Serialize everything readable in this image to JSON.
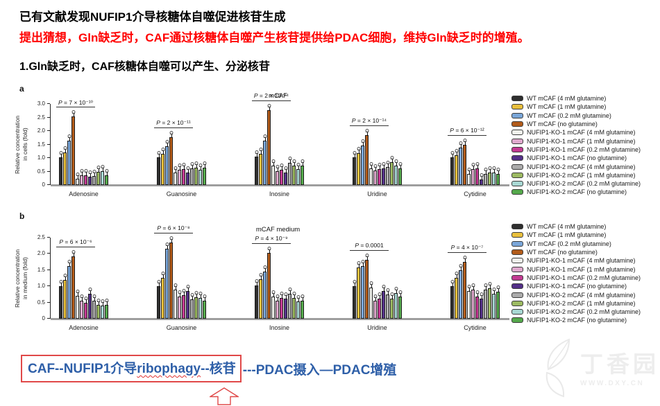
{
  "slide": {
    "heading1": "已有文献发现NUFIP1介导核糖体自噬促进核苷生成",
    "heading2": "提出猜想，Gln缺乏时，CAF通过核糖体自噬产生核苷提供给PDAC细胞，维持Gln缺乏时的增殖。",
    "heading3": "1.Gln缺乏时，CAF核糖体自噬可以产生、分泌核苷",
    "conclusion": {
      "boxed_pre": "CAF--NUFIP1介导",
      "boxed_term": "ribophagy",
      "boxed_post": "--核苷",
      "rest": "---PDAC摄入—PDAC增殖"
    },
    "colors": {
      "heading_red": "#ff0000",
      "conclusion_blue": "#2e5fa8",
      "box_red": "#e04848",
      "baseline_gray": "#9e9e9e"
    }
  },
  "watermark": {
    "site_name": "丁香园",
    "site_url": "WWW.DXY.CN"
  },
  "chart_data": [
    {
      "type": "bar",
      "panel_label": "a",
      "title": "mCAF",
      "ylabel": "Relative concentration\nin cells (fold)",
      "ylim": [
        0,
        3.0
      ],
      "ytick_step": 0.5,
      "grid": false,
      "legend_position": "right",
      "categories": [
        "Adenosine",
        "Guanosine",
        "Inosine",
        "Uridine",
        "Cytidine"
      ],
      "p_values": [
        "P = 7 × 10⁻¹⁰",
        "P = 2 × 10⁻¹¹",
        "P = 2 × 10⁻¹⁴",
        "P = 2 × 10⁻¹⁴",
        "P = 6 × 10⁻¹²"
      ],
      "series": [
        {
          "name": "WT mCAF (4 mM glutamine)",
          "color": "#2e2e2e",
          "values": [
            1.03,
            1.03,
            1.05,
            1.03,
            1.03
          ]
        },
        {
          "name": "WT mCAF (1 mM glutamine)",
          "color": "#e8bf3d",
          "values": [
            1.2,
            1.15,
            1.15,
            1.17,
            1.1
          ]
        },
        {
          "name": "WT mCAF (0.2 mM glutamine)",
          "color": "#7aa6d8",
          "values": [
            1.63,
            1.43,
            1.65,
            1.45,
            1.38
          ]
        },
        {
          "name": "WT mCAF (no glutamine)",
          "color": "#b25c1b",
          "values": [
            2.53,
            1.77,
            2.78,
            1.85,
            1.5
          ]
        },
        {
          "name": "NUFIP1-KO-1 mCAF (4 mM glutamine)",
          "color": "#f0f2ec",
          "values": [
            0.22,
            0.45,
            0.72,
            0.62,
            0.4
          ]
        },
        {
          "name": "NUFIP1-KO-1 mCAF (1 mM glutamine)",
          "color": "#dfa9cd",
          "values": [
            0.35,
            0.57,
            0.52,
            0.55,
            0.6
          ]
        },
        {
          "name": "NUFIP1-KO-1 mCAF (0.2 mM glutamine)",
          "color": "#c23a92",
          "values": [
            0.35,
            0.58,
            0.57,
            0.58,
            0.62
          ]
        },
        {
          "name": "NUFIP1-KO-1 mCAF (no glutamine)",
          "color": "#533088",
          "values": [
            0.3,
            0.45,
            0.47,
            0.62,
            0.2
          ]
        },
        {
          "name": "NUFIP1-KO-2 mCAF (4 mM glutamine)",
          "color": "#ababab",
          "values": [
            0.33,
            0.62,
            0.82,
            0.67,
            0.4
          ]
        },
        {
          "name": "NUFIP1-KO-2 mCAF (1 mM glutamine)",
          "color": "#9cba62",
          "values": [
            0.48,
            0.65,
            0.72,
            0.85,
            0.45
          ]
        },
        {
          "name": "NUFIP1-KO-2 mCAF (0.2 mM glutamine)",
          "color": "#a8d8d3",
          "values": [
            0.52,
            0.57,
            0.6,
            0.73,
            0.45
          ]
        },
        {
          "name": "NUFIP1-KO-2 mCAF (no glutamine)",
          "color": "#55a94c",
          "values": [
            0.36,
            0.63,
            0.72,
            0.62,
            0.42
          ]
        }
      ]
    },
    {
      "type": "bar",
      "panel_label": "b",
      "title": "mCAF medium",
      "ylabel": "Relative concentration\nin medium (fold)",
      "ylim": [
        0,
        2.5
      ],
      "ytick_step": 0.5,
      "grid": false,
      "legend_position": "right",
      "categories": [
        "Adenosine",
        "Guanosine",
        "Inosine",
        "Uridine",
        "Cytidine"
      ],
      "p_values": [
        "P = 6 × 10⁻⁶",
        "P = 6 × 10⁻⁸",
        "P = 4 × 10⁻⁹",
        "P = 0.0001",
        "P = 4 × 10⁻⁷"
      ],
      "series": [
        {
          "name": "WT mCAF (4 mM glutamine)",
          "color": "#2e2e2e",
          "values": [
            1.0,
            1.0,
            1.02,
            1.0,
            1.0
          ]
        },
        {
          "name": "WT mCAF (1 mM glutamine)",
          "color": "#e8bf3d",
          "values": [
            1.2,
            1.27,
            1.22,
            1.58,
            1.27
          ]
        },
        {
          "name": "WT mCAF (0.2 mM glutamine)",
          "color": "#7aa6d8",
          "values": [
            1.62,
            2.15,
            1.45,
            1.62,
            1.5
          ]
        },
        {
          "name": "WT mCAF (no glutamine)",
          "color": "#b25c1b",
          "values": [
            1.92,
            2.35,
            2.03,
            1.82,
            1.75
          ]
        },
        {
          "name": "NUFIP1-KO-1 mCAF (4 mM glutamine)",
          "color": "#f0f2ec",
          "values": [
            0.7,
            0.9,
            0.68,
            0.97,
            0.85
          ]
        },
        {
          "name": "NUFIP1-KO-1 mCAF (1 mM glutamine)",
          "color": "#dfa9cd",
          "values": [
            0.55,
            0.68,
            0.55,
            0.55,
            0.9
          ]
        },
        {
          "name": "NUFIP1-KO-1 mCAF (0.2 mM glutamine)",
          "color": "#c23a92",
          "values": [
            0.5,
            0.72,
            0.65,
            0.62,
            0.68
          ]
        },
        {
          "name": "NUFIP1-KO-1 mCAF (no glutamine)",
          "color": "#533088",
          "values": [
            0.77,
            0.85,
            0.62,
            0.85,
            0.62
          ]
        },
        {
          "name": "NUFIP1-KO-2 mCAF (4 mM glutamine)",
          "color": "#ababab",
          "values": [
            0.55,
            0.6,
            0.78,
            0.75,
            0.9
          ]
        },
        {
          "name": "NUFIP1-KO-2 mCAF (1 mM glutamine)",
          "color": "#9cba62",
          "values": [
            0.43,
            0.67,
            0.65,
            0.62,
            0.95
          ]
        },
        {
          "name": "NUFIP1-KO-2 mCAF (0.2 mM glutamine)",
          "color": "#a8d8d3",
          "values": [
            0.4,
            0.65,
            0.53,
            0.8,
            0.77
          ]
        },
        {
          "name": "NUFIP1-KO-2 mCAF (no glutamine)",
          "color": "#55a94c",
          "values": [
            0.42,
            0.55,
            0.55,
            0.68,
            0.83
          ]
        }
      ]
    }
  ]
}
